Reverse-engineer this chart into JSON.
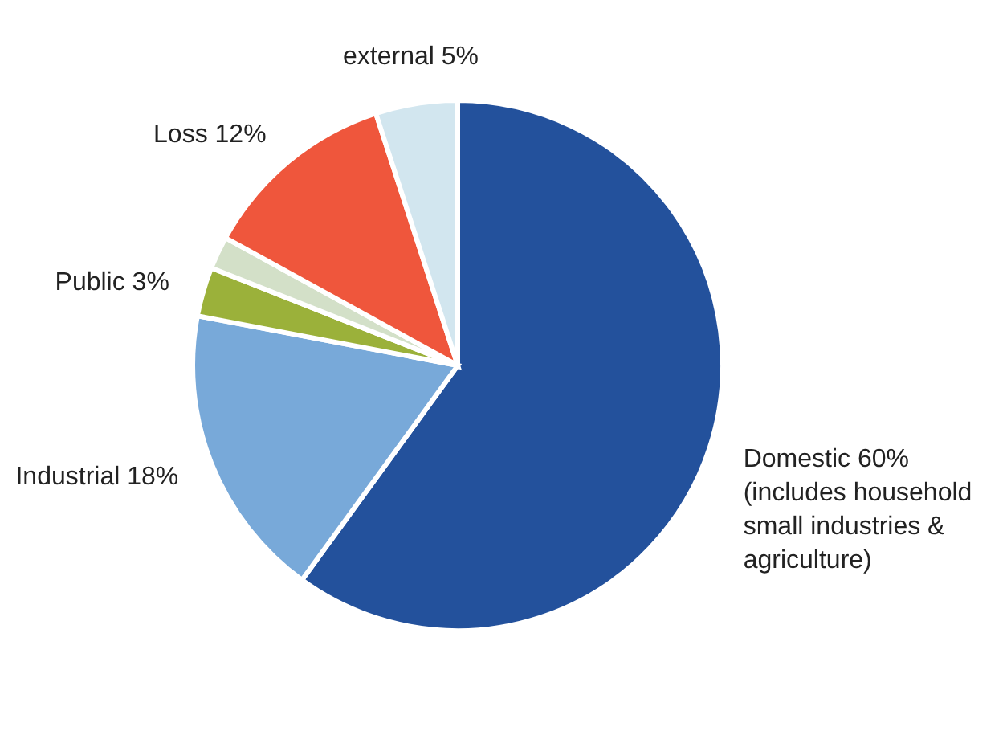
{
  "chart_data": {
    "type": "pie",
    "categories": [
      "Domestic",
      "Industrial",
      "Public",
      null,
      "Loss",
      "external"
    ],
    "values": [
      60,
      18,
      3,
      2,
      12,
      5
    ],
    "value_labels": [
      "60%",
      "18%",
      "3%",
      null,
      "12%",
      "5%"
    ],
    "colors": [
      "#23519c",
      "#78a9d9",
      "#9bb13a",
      "#d3e0c8",
      "#ef563c",
      "#d2e6ef"
    ],
    "annotations": [
      "(includes household small industries & agriculture)"
    ]
  }
}
